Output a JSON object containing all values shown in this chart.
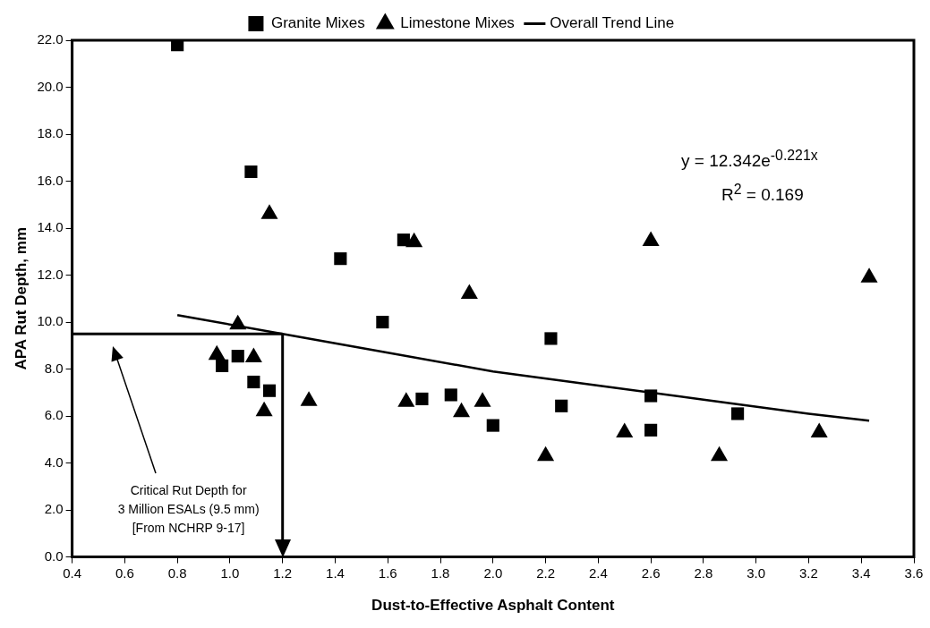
{
  "chart_data": {
    "type": "scatter",
    "xlabel": "Dust-to-Effective Asphalt Content",
    "ylabel": "APA Rut Depth, mm",
    "series": [
      {
        "name": "Granite Mixes",
        "marker": "square",
        "color": "#000000",
        "x": [
          0.8,
          1.08,
          1.42,
          1.66,
          1.58,
          1.03,
          0.97,
          1.09,
          1.15,
          2.22,
          2.6,
          1.73,
          1.84,
          2.26,
          2.0,
          2.6,
          2.93
        ],
        "values": [
          21.8,
          16.4,
          12.7,
          13.5,
          10.0,
          8.55,
          8.14,
          7.45,
          7.08,
          9.3,
          6.86,
          6.73,
          6.9,
          6.43,
          5.6,
          5.4,
          6.1
        ]
      },
      {
        "name": "Limestone Mixes",
        "marker": "triangle",
        "color": "#000000",
        "x": [
          1.15,
          1.7,
          1.03,
          0.95,
          1.09,
          1.13,
          1.3,
          1.67,
          1.91,
          2.6,
          1.96,
          1.88,
          2.2,
          2.5,
          2.86,
          3.24,
          3.43
        ],
        "values": [
          14.6,
          13.4,
          9.9,
          8.6,
          8.5,
          6.2,
          6.64,
          6.6,
          11.2,
          13.45,
          6.6,
          6.16,
          4.3,
          5.3,
          4.3,
          5.3,
          11.9
        ]
      },
      {
        "name": "Overall Trend Line",
        "type": "line",
        "marker": "none",
        "color": "#000000",
        "x": [
          0.8,
          1.2,
          1.6,
          2.0,
          2.4,
          2.8,
          3.2,
          3.43
        ],
        "values": [
          10.3,
          9.5,
          8.7,
          7.9,
          7.3,
          6.7,
          6.1,
          5.8
        ]
      }
    ],
    "xlim": [
      0.4,
      3.6
    ],
    "xticks": [
      {
        "value": 0.4,
        "label": "0.4"
      },
      {
        "value": 0.6,
        "label": "0.6"
      },
      {
        "value": 0.8,
        "label": "0.8"
      },
      {
        "value": 1.0,
        "label": "1.0"
      },
      {
        "value": 1.2,
        "label": "1.2"
      },
      {
        "value": 1.4,
        "label": "1.4"
      },
      {
        "value": 1.6,
        "label": "1.6"
      },
      {
        "value": 1.8,
        "label": "1.8"
      },
      {
        "value": 2.0,
        "label": "2.0"
      },
      {
        "value": 2.2,
        "label": "2.2"
      },
      {
        "value": 2.4,
        "label": "2.4"
      },
      {
        "value": 2.6,
        "label": "2.6"
      },
      {
        "value": 2.8,
        "label": "2.8"
      },
      {
        "value": 3.0,
        "label": "3.0"
      },
      {
        "value": 3.2,
        "label": "3.2"
      },
      {
        "value": 3.4,
        "label": "3.4"
      },
      {
        "value": 3.6,
        "label": "3.6"
      }
    ],
    "ylim": [
      0,
      22
    ],
    "yticks": [
      {
        "value": 0,
        "label": "0.0"
      },
      {
        "value": 2,
        "label": "2.0"
      },
      {
        "value": 4,
        "label": "4.0"
      },
      {
        "value": 6,
        "label": "6.0"
      },
      {
        "value": 8,
        "label": "8.0"
      },
      {
        "value": 10,
        "label": "10.0"
      },
      {
        "value": 12,
        "label": "12.0"
      },
      {
        "value": 14,
        "label": "14.0"
      },
      {
        "value": 16,
        "label": "16.0"
      },
      {
        "value": 18,
        "label": "18.0"
      },
      {
        "value": 20,
        "label": "20.0"
      },
      {
        "value": 22,
        "label": "22.0"
      }
    ],
    "ref_lines": [
      {
        "axis": "y",
        "value": 9.5
      },
      {
        "axis": "x",
        "value": 1.2
      }
    ],
    "annotations": [
      "Critical Rut Depth for\n3 Million ESALs (9.5 mm)\n[From NCHRP 9-17]",
      "y = 12.342e$^{-0.221x}$",
      "R$^{2}$ = 0.169"
    ],
    "grid": false,
    "legend": "top"
  }
}
